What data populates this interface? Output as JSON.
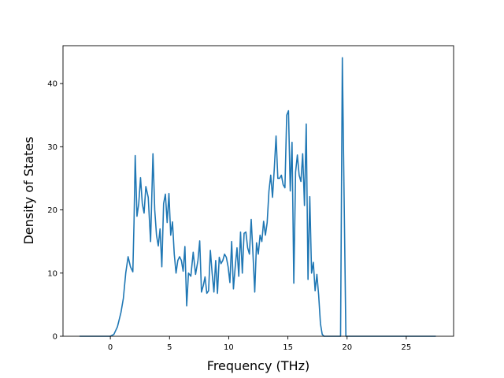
{
  "chart_data": {
    "type": "line",
    "title": "",
    "xlabel": "Frequency (THz)",
    "ylabel": "Density of States",
    "xlim": [
      -4,
      29
    ],
    "ylim": [
      0,
      46
    ],
    "xticks": [
      0,
      5,
      10,
      15,
      20,
      25
    ],
    "yticks": [
      0,
      10,
      20,
      30,
      40
    ],
    "grid": false,
    "line_color": "#1f77b4",
    "series": [
      {
        "x": [
          -2.6,
          -1.5,
          -0.5,
          0.0,
          0.3,
          0.6,
          0.9,
          1.1,
          1.3,
          1.5,
          1.7,
          1.9,
          2.0,
          2.1,
          2.25,
          2.4,
          2.55,
          2.7,
          2.85,
          3.0,
          3.2,
          3.4,
          3.6,
          3.75,
          3.9,
          4.05,
          4.2,
          4.35,
          4.5,
          4.65,
          4.8,
          4.95,
          5.1,
          5.25,
          5.4,
          5.55,
          5.7,
          5.85,
          6.0,
          6.15,
          6.3,
          6.45,
          6.6,
          6.8,
          7.0,
          7.2,
          7.4,
          7.55,
          7.7,
          7.85,
          8.0,
          8.15,
          8.3,
          8.45,
          8.6,
          8.75,
          8.9,
          9.05,
          9.2,
          9.35,
          9.5,
          9.65,
          9.8,
          9.95,
          10.1,
          10.25,
          10.4,
          10.55,
          10.7,
          10.85,
          11.0,
          11.15,
          11.3,
          11.45,
          11.6,
          11.75,
          11.9,
          12.05,
          12.2,
          12.35,
          12.5,
          12.65,
          12.8,
          12.95,
          13.1,
          13.25,
          13.4,
          13.55,
          13.7,
          13.85,
          14.0,
          14.15,
          14.3,
          14.45,
          14.6,
          14.75,
          14.9,
          15.05,
          15.2,
          15.35,
          15.5,
          15.65,
          15.8,
          15.95,
          16.1,
          16.25,
          16.4,
          16.55,
          16.7,
          16.85,
          17.0,
          17.15,
          17.3,
          17.45,
          17.6,
          17.75,
          17.9,
          18.05,
          18.2,
          18.5,
          18.9,
          19.2,
          19.45,
          19.6,
          19.75,
          19.9,
          20.2,
          21.0,
          23.0,
          25.0,
          27.5
        ],
        "values": [
          0,
          0,
          0,
          0,
          0.3,
          1.5,
          3.8,
          6.0,
          10.0,
          12.6,
          11.0,
          10.2,
          18.0,
          28.6,
          19.0,
          21.0,
          25.1,
          21.0,
          19.5,
          23.7,
          22.0,
          15.0,
          28.9,
          20.0,
          16.0,
          14.3,
          17.0,
          11.0,
          21.0,
          22.5,
          18.0,
          22.6,
          16.0,
          18.1,
          13.0,
          10.0,
          12.0,
          12.6,
          12.0,
          10.3,
          14.2,
          4.8,
          10.0,
          9.5,
          13.3,
          9.8,
          12.0,
          15.1,
          7.0,
          8.0,
          9.4,
          6.8,
          7.2,
          13.6,
          10.0,
          7.0,
          12.0,
          6.8,
          12.5,
          11.5,
          12.0,
          13.0,
          12.5,
          11.0,
          8.5,
          15.0,
          7.5,
          11.0,
          14.0,
          9.5,
          16.5,
          10.0,
          16.3,
          16.5,
          14.0,
          13.0,
          18.5,
          13.0,
          7.0,
          14.8,
          13.0,
          16.0,
          15.0,
          18.2,
          16.0,
          18.0,
          23.0,
          25.5,
          22.0,
          26.5,
          31.7,
          25.0,
          25.0,
          25.5,
          24.0,
          23.5,
          35.0,
          35.7,
          23.0,
          30.7,
          8.4,
          26.0,
          28.7,
          25.5,
          24.5,
          28.9,
          20.7,
          33.6,
          9.0,
          22.1,
          10.0,
          11.7,
          7.2,
          9.8,
          6.5,
          2.0,
          0.3,
          0,
          0,
          0,
          0,
          0,
          0,
          44.1,
          22.0,
          0,
          0,
          0,
          0,
          0,
          0
        ]
      }
    ]
  }
}
